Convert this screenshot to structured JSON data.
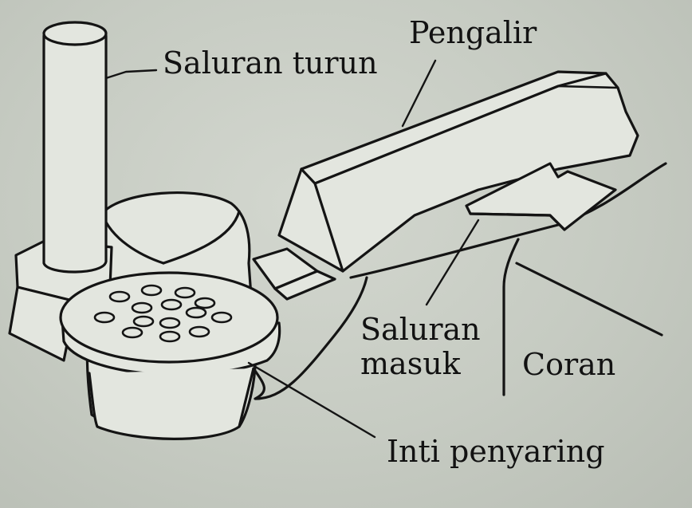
{
  "diagram": {
    "labels": {
      "saluran_turun": "Saluran turun",
      "pengalir": "Pengalir",
      "saluran_masuk_line1": "Saluran",
      "saluran_masuk_line2": "masuk",
      "coran": "Coran",
      "inti_penyaring": "Inti penyaring"
    },
    "colors": {
      "background": "#c7ccc3",
      "stroke": "#141414",
      "fill": "#e3e6df"
    }
  }
}
